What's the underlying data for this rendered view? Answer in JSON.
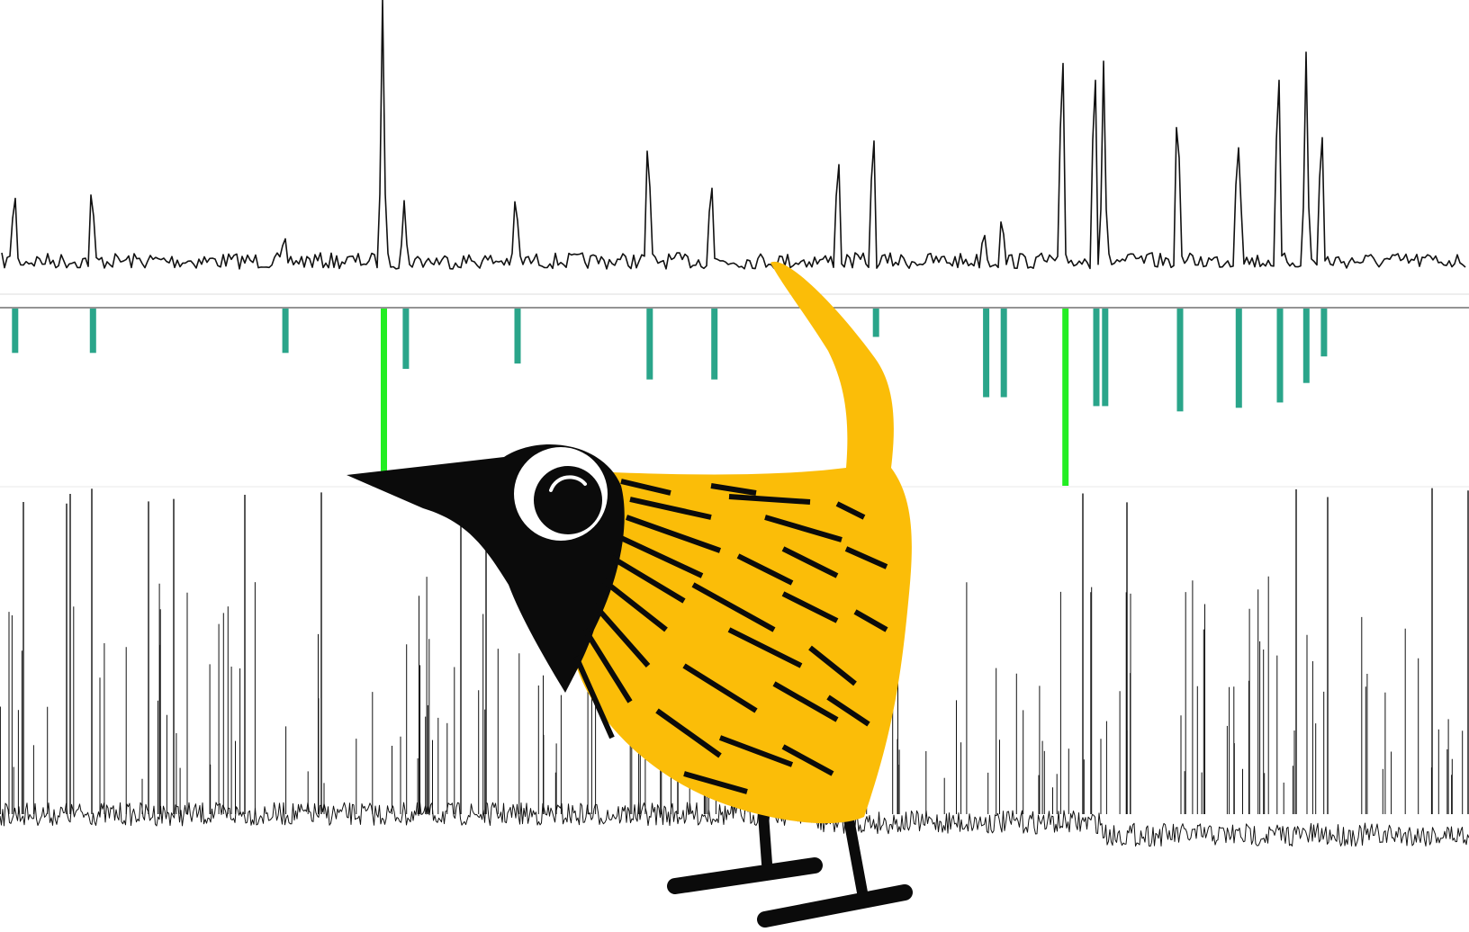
{
  "colors": {
    "background": "#ffffff",
    "trace": "#111111",
    "divider": "#555555",
    "event_marker": "#2aa58a",
    "event_marker_strong": "#22ee22",
    "bird_body": "#fbbd08",
    "bird_head": "#0b0b0b",
    "bird_eye_ring": "#ffffff"
  },
  "panels": {
    "top_trace": {
      "kind": "zoomed signal trace with spikes"
    },
    "event_markers": {
      "kind": "detected spike markers",
      "events": [
        {
          "t": 0.01,
          "strength": 0.25,
          "strong": false
        },
        {
          "t": 0.063,
          "strength": 0.25,
          "strong": false
        },
        {
          "t": 0.194,
          "strength": 0.25,
          "strong": false
        },
        {
          "t": 0.261,
          "strength": 1.0,
          "strong": true
        },
        {
          "t": 0.276,
          "strength": 0.34,
          "strong": false
        },
        {
          "t": 0.352,
          "strength": 0.31,
          "strong": false
        },
        {
          "t": 0.442,
          "strength": 0.4,
          "strong": false
        },
        {
          "t": 0.486,
          "strength": 0.4,
          "strong": false
        },
        {
          "t": 0.596,
          "strength": 0.16,
          "strong": false
        },
        {
          "t": 0.671,
          "strength": 0.5,
          "strong": false
        },
        {
          "t": 0.683,
          "strength": 0.5,
          "strong": false
        },
        {
          "t": 0.725,
          "strength": 1.0,
          "strong": true
        },
        {
          "t": 0.746,
          "strength": 0.55,
          "strong": false
        },
        {
          "t": 0.752,
          "strength": 0.55,
          "strong": false
        },
        {
          "t": 0.803,
          "strength": 0.58,
          "strong": false
        },
        {
          "t": 0.843,
          "strength": 0.56,
          "strong": false
        },
        {
          "t": 0.871,
          "strength": 0.53,
          "strong": false
        },
        {
          "t": 0.889,
          "strength": 0.42,
          "strong": false
        },
        {
          "t": 0.901,
          "strength": 0.27,
          "strong": false
        }
      ]
    },
    "bottom_trace": {
      "kind": "long dense signal trace with spikes"
    }
  },
  "mascot": {
    "icon": "yellow-bird-mascot-icon"
  }
}
